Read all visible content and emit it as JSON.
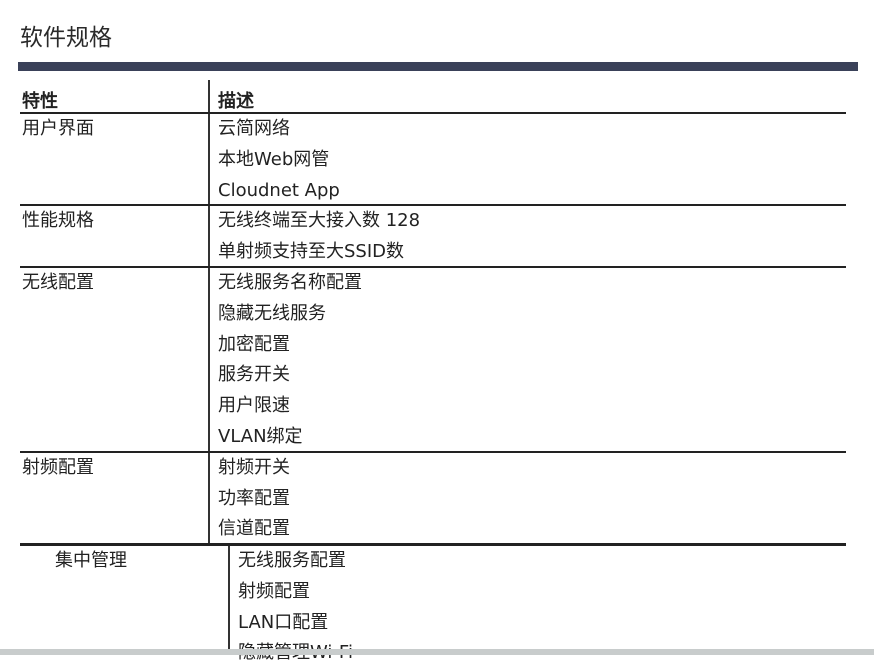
{
  "title": "软件规格",
  "table": {
    "headers": [
      "特性",
      "描述"
    ],
    "rows": [
      {
        "feature": "用户界面",
        "items": [
          "云简网络",
          "本地Web网管",
          "Cloudnet App"
        ]
      },
      {
        "feature": "性能规格",
        "items": [
          "无线终端至大接入数 128",
          "单射频支持至大SSID数"
        ]
      },
      {
        "feature": "无线配置",
        "items": [
          "无线服务名称配置",
          "隐藏无线服务",
          "加密配置",
          "服务开关",
          "用户限速",
          "VLAN绑定"
        ]
      },
      {
        "feature": "射频配置",
        "items": [
          "射频开关",
          "功率配置",
          "信道配置"
        ]
      },
      {
        "feature": "集中管理",
        "items": [
          "无线服务配置",
          "射频配置",
          "LAN口配置",
          "隐藏管理Wi-Fi"
        ]
      }
    ]
  }
}
